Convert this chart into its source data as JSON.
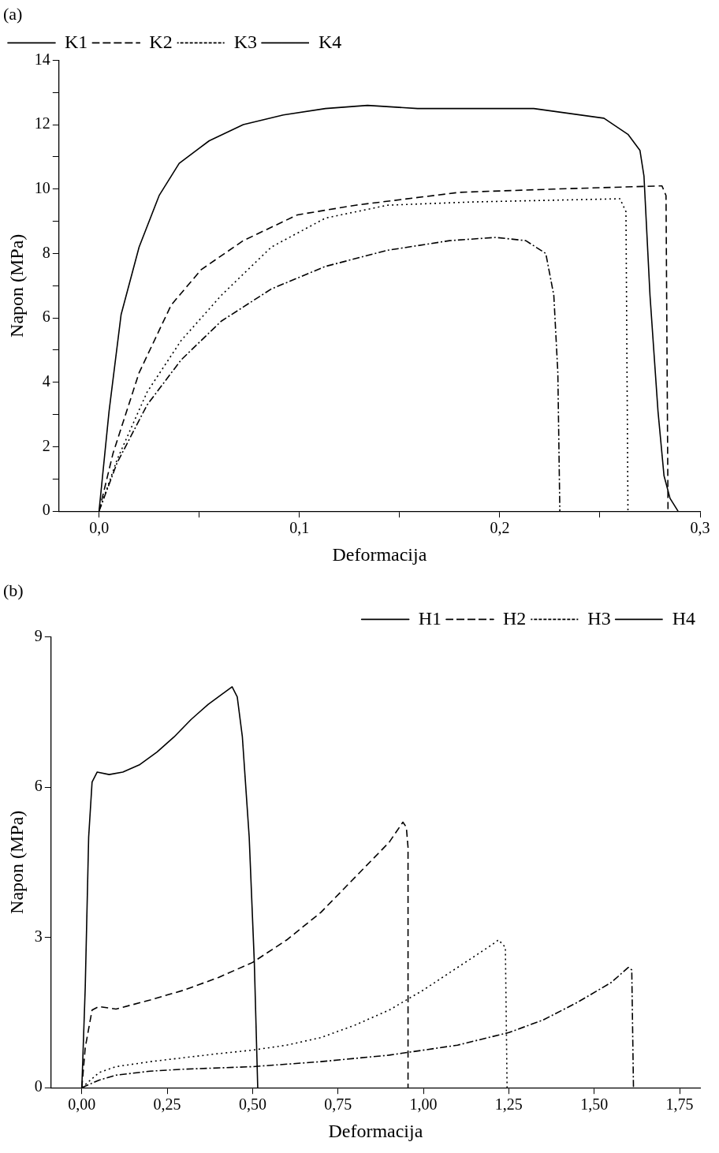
{
  "chart_data": [
    {
      "type": "line",
      "title": "(a)",
      "xlabel": "Deformacija",
      "ylabel": "Napon (MPa)",
      "xlim": [
        -0.02,
        0.3
      ],
      "xticks": [
        {
          "value": 0,
          "label": "0,0"
        },
        {
          "value": 0.05,
          "label": null
        },
        {
          "value": 0.1,
          "label": "0,1"
        },
        {
          "value": 0.15,
          "label": null
        },
        {
          "value": 0.2,
          "label": "0,2"
        },
        {
          "value": 0.25,
          "label": null
        },
        {
          "value": 0.3,
          "label": "0,3"
        }
      ],
      "ylim": [
        0,
        14
      ],
      "yticks": [
        0,
        {
          "value": 1,
          "label": null
        },
        2,
        {
          "value": 3,
          "label": null
        },
        4,
        {
          "value": 5,
          "label": null
        },
        6,
        {
          "value": 7,
          "label": null
        },
        8,
        {
          "value": 9,
          "label": null
        },
        10,
        {
          "value": 11,
          "label": null
        },
        12,
        {
          "value": 13,
          "label": null
        },
        14
      ],
      "grid": false,
      "legend": "top left",
      "marker": "none",
      "series": [
        {
          "name": "K1",
          "color": "#000000",
          "line_style": "solid",
          "x": [
            0,
            0.005,
            0.011,
            0.02,
            0.03,
            0.04,
            0.055,
            0.072,
            0.092,
            0.113,
            0.134,
            0.159,
            0.18,
            0.217,
            0.252,
            0.264,
            0.27,
            0.272,
            0.275,
            0.279,
            0.282,
            0.285,
            0.289
          ],
          "values": [
            0,
            3.1,
            6.1,
            8.2,
            9.8,
            10.8,
            11.5,
            12.0,
            12.3,
            12.5,
            12.6,
            12.5,
            12.5,
            12.5,
            12.2,
            11.7,
            11.2,
            10.4,
            6.7,
            3.1,
            1.1,
            0.4,
            0
          ]
        },
        {
          "name": "K2",
          "color": "#000000",
          "line_style": "dashed",
          "x": [
            0,
            0.007,
            0.02,
            0.036,
            0.051,
            0.072,
            0.099,
            0.128,
            0.18,
            0.227,
            0.281,
            0.283,
            0.284
          ],
          "values": [
            0,
            1.8,
            4.3,
            6.4,
            7.5,
            8.4,
            9.2,
            9.5,
            9.9,
            10.0,
            10.1,
            9.8,
            0
          ]
        },
        {
          "name": "K3",
          "color": "#000000",
          "line_style": "dotted",
          "x": [
            0,
            0.009,
            0.024,
            0.041,
            0.061,
            0.086,
            0.113,
            0.144,
            0.186,
            0.26,
            0.263,
            0.264
          ],
          "values": [
            0,
            1.6,
            3.7,
            5.3,
            6.7,
            8.2,
            9.1,
            9.5,
            9.6,
            9.7,
            9.3,
            0
          ]
        },
        {
          "name": "K4",
          "color": "#000000",
          "line_style": "dashdot",
          "x": [
            0,
            0.009,
            0.024,
            0.041,
            0.061,
            0.086,
            0.113,
            0.144,
            0.175,
            0.198,
            0.213,
            0.223,
            0.227,
            0.229,
            0.23
          ],
          "values": [
            0,
            1.5,
            3.3,
            4.7,
            5.9,
            6.9,
            7.6,
            8.1,
            8.4,
            8.5,
            8.4,
            8.0,
            6.7,
            4.3,
            0
          ]
        }
      ]
    },
    {
      "type": "line",
      "title": "(b)",
      "xlabel": "Deformacija",
      "ylabel": "Napon (MPa)",
      "xlim": [
        -0.09,
        1.81
      ],
      "xticks": [
        {
          "value": 0,
          "label": "0,00"
        },
        {
          "value": 0.25,
          "label": "0,25"
        },
        {
          "value": 0.5,
          "label": "0,50"
        },
        {
          "value": 0.75,
          "label": "0,75"
        },
        {
          "value": 1,
          "label": "1,00"
        },
        {
          "value": 1.25,
          "label": "1,25"
        },
        {
          "value": 1.5,
          "label": "1,50"
        },
        {
          "value": 1.75,
          "label": "1,75"
        }
      ],
      "ylim": [
        0,
        9
      ],
      "yticks": [
        0,
        3,
        6,
        9
      ],
      "grid": false,
      "legend": "top right",
      "marker": "none",
      "series": [
        {
          "name": "H1",
          "color": "#000000",
          "line_style": "solid",
          "x": [
            0,
            0.01,
            0.02,
            0.03,
            0.045,
            0.08,
            0.12,
            0.17,
            0.22,
            0.27,
            0.32,
            0.37,
            0.41,
            0.44,
            0.455,
            0.47,
            0.49,
            0.505,
            0.515
          ],
          "values": [
            0,
            2,
            5,
            6.1,
            6.3,
            6.25,
            6.3,
            6.45,
            6.7,
            7.0,
            7.35,
            7.65,
            7.85,
            8.0,
            7.8,
            7.0,
            5,
            2.5,
            0
          ]
        },
        {
          "name": "H2",
          "color": "#000000",
          "line_style": "dashed",
          "x": [
            0,
            0.01,
            0.03,
            0.05,
            0.1,
            0.2,
            0.3,
            0.4,
            0.5,
            0.6,
            0.7,
            0.8,
            0.9,
            0.94,
            0.95,
            0.955,
            0.955
          ],
          "values": [
            0,
            0.8,
            1.55,
            1.62,
            1.57,
            1.75,
            1.95,
            2.2,
            2.5,
            2.95,
            3.5,
            4.2,
            4.9,
            5.3,
            5.2,
            4.8,
            0
          ]
        },
        {
          "name": "H3",
          "color": "#000000",
          "line_style": "dotted",
          "x": [
            0,
            0.05,
            0.1,
            0.2,
            0.3,
            0.4,
            0.5,
            0.6,
            0.7,
            0.8,
            0.9,
            1.0,
            1.1,
            1.2,
            1.22,
            1.24,
            1.245
          ],
          "values": [
            0,
            0.3,
            0.42,
            0.52,
            0.6,
            0.68,
            0.75,
            0.85,
            1.0,
            1.25,
            1.55,
            1.95,
            2.4,
            2.85,
            2.95,
            2.8,
            0
          ]
        },
        {
          "name": "H4",
          "color": "#000000",
          "line_style": "dashdot",
          "x": [
            0,
            0.05,
            0.1,
            0.2,
            0.3,
            0.5,
            0.7,
            0.9,
            1.1,
            1.25,
            1.35,
            1.45,
            1.55,
            1.6,
            1.61,
            1.615
          ],
          "values": [
            0,
            0.15,
            0.25,
            0.33,
            0.37,
            0.42,
            0.52,
            0.65,
            0.85,
            1.1,
            1.35,
            1.7,
            2.1,
            2.4,
            2.35,
            0
          ]
        }
      ]
    }
  ]
}
